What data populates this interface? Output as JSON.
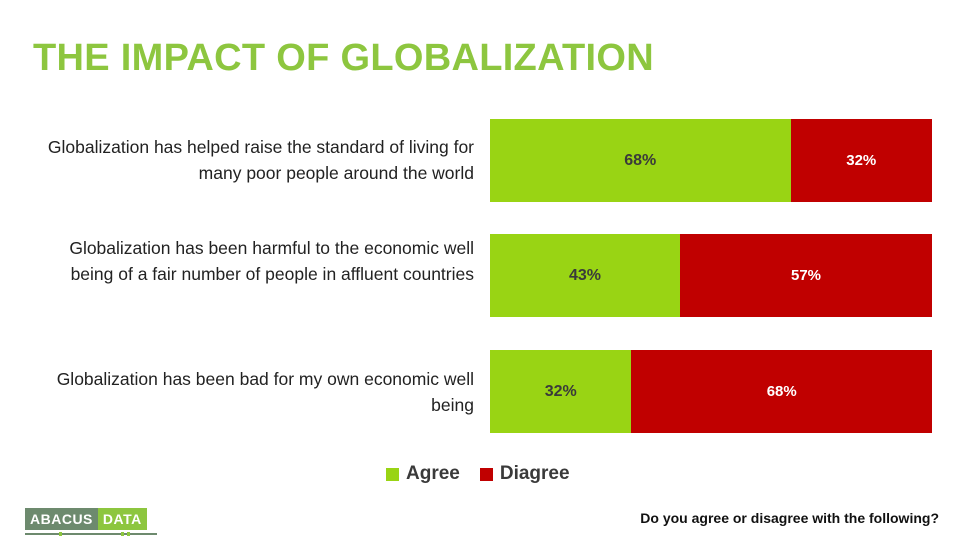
{
  "title": "THE IMPACT OF GLOBALIZATION",
  "question": "Do you agree or disagree with the following?",
  "logo": {
    "part1": "ABACUS",
    "part2": "DATA"
  },
  "colors": {
    "title": "#8dc63f",
    "agree": "#99d414",
    "disagree": "#c00000",
    "logo_dark": "#6d8a6e",
    "logo_green": "#8dc63f"
  },
  "chart_data": {
    "type": "bar",
    "orientation": "horizontal",
    "stacked": true,
    "categories": [
      "Globalization has helped raise the standard of living for many poor people around the world",
      "Globalization has been harmful to the economic well being of a fair number of people in affluent countries",
      "Globalization has been bad for my own economic well being"
    ],
    "series": [
      {
        "name": "Agree",
        "color": "#99d414",
        "values": [
          68,
          43,
          32
        ],
        "labels": [
          "68%",
          "43%",
          "32%"
        ]
      },
      {
        "name": "Diagree",
        "color": "#c00000",
        "values": [
          32,
          57,
          68
        ],
        "labels": [
          "32%",
          "57%",
          "68%"
        ]
      }
    ],
    "xlim": [
      0,
      100
    ],
    "legend": "bottom-center",
    "grid": false
  }
}
